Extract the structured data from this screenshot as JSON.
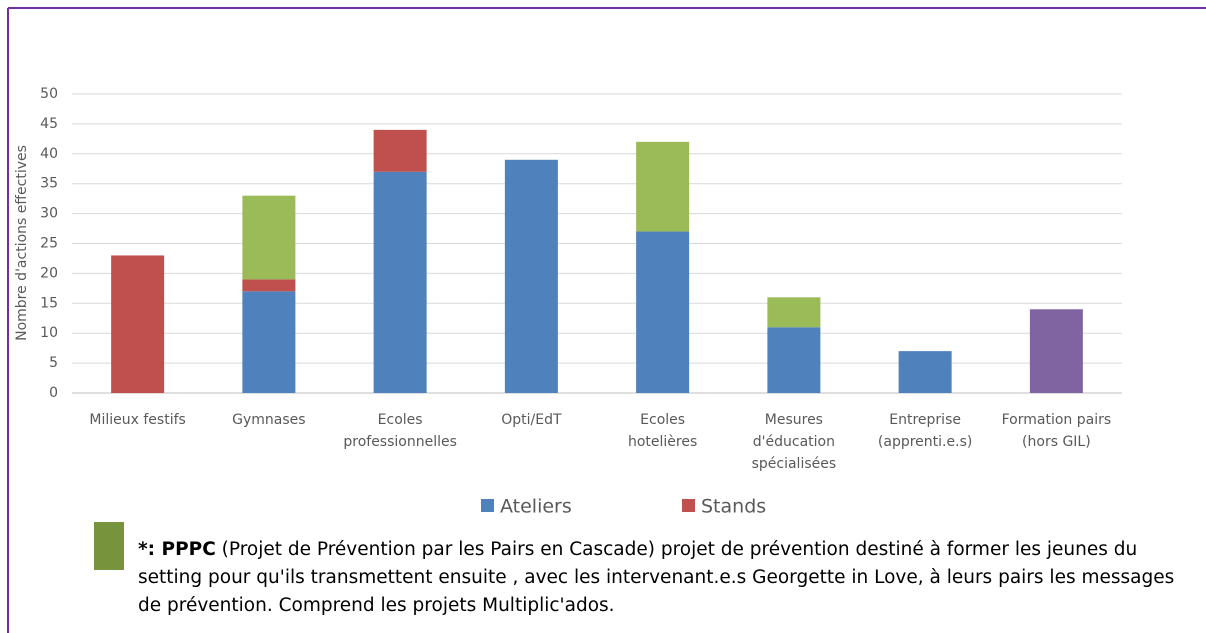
{
  "chart_data": {
    "type": "bar",
    "stacked": true,
    "y_label": "Nombre d'actions effectives",
    "categories": [
      [
        "Milieux festifs"
      ],
      [
        "Gymnases"
      ],
      [
        "Ecoles",
        "professionnelles"
      ],
      [
        "Opti/EdT"
      ],
      [
        "Ecoles",
        "hotelières"
      ],
      [
        "Mesures",
        "d'éducation",
        "spécialisées"
      ],
      [
        "Entreprise",
        "(apprenti.e.s)"
      ],
      [
        "Formation pairs",
        "(hors GIL)"
      ]
    ],
    "series": [
      {
        "name": "Ateliers",
        "color": "#4f81bd",
        "values": [
          null,
          17,
          37,
          39,
          27,
          11,
          7,
          null
        ]
      },
      {
        "name": "Stands",
        "color": "#c0504d",
        "values": [
          23,
          2,
          7,
          null,
          null,
          null,
          null,
          null
        ]
      },
      {
        "color": "#9bbb59",
        "values": [
          null,
          14,
          null,
          null,
          15,
          5,
          null,
          null
        ]
      },
      {
        "color": "#8064a2",
        "values": [
          null,
          null,
          null,
          null,
          null,
          null,
          null,
          14
        ]
      }
    ],
    "ylim": [
      0,
      50
    ],
    "yticks": [
      0,
      5,
      10,
      15,
      20,
      25,
      30,
      35,
      40,
      45,
      50
    ],
    "grid": true,
    "legend": "bottom",
    "note": {
      "color": "#77933c",
      "bold": "*: PPPC",
      "text": "(Projet de Prévention  par les Pairs en Cascade) projet de prévention destiné à former les jeunes du setting pour qu'ils  transmettent ensuite , avec les intervenant.e.s Georgette in Love, à leurs pairs les messages de prévention.  Comprend les projets Multiplic'ados."
    }
  }
}
